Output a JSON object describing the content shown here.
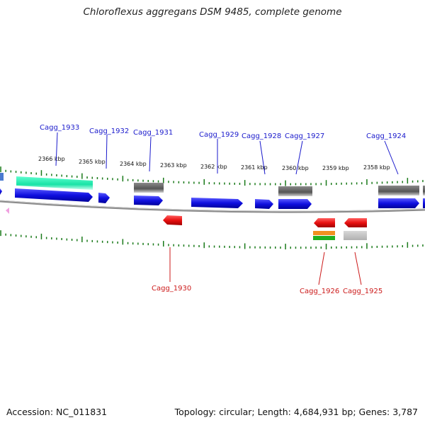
{
  "title": "Chloroflexus aggregans DSM 9485, complete genome",
  "footer": {
    "accession": "Accession: NC_011831",
    "summary": "Topology: circular; Length: 4,684,931 bp; Genes: 3,787"
  },
  "colors": {
    "forward_label": "#1a1acc",
    "reverse_label": "#cc1a1a",
    "cds_forward": "#1010e0",
    "cds_reverse": "#e01010",
    "other_feature": "#5a5a5a",
    "rrna": "#19e3a6",
    "backbone": "#808080",
    "tick": "#1a7a1a"
  },
  "scale_labels": [
    "2366 kbp",
    "2365 kbp",
    "2364 kbp",
    "2363 kbp",
    "2362 kbp",
    "2361 kbp",
    "2360 kbp",
    "2359 kbp",
    "2358 kbp"
  ],
  "forward_genes": [
    "Cagg_1933",
    "Cagg_1932",
    "Cagg_1931",
    "Cagg_1929",
    "Cagg_1928",
    "Cagg_1927",
    "Cagg_1924"
  ],
  "reverse_genes": [
    "Cagg_1930",
    "Cagg_1926",
    "Cagg_1925"
  ]
}
